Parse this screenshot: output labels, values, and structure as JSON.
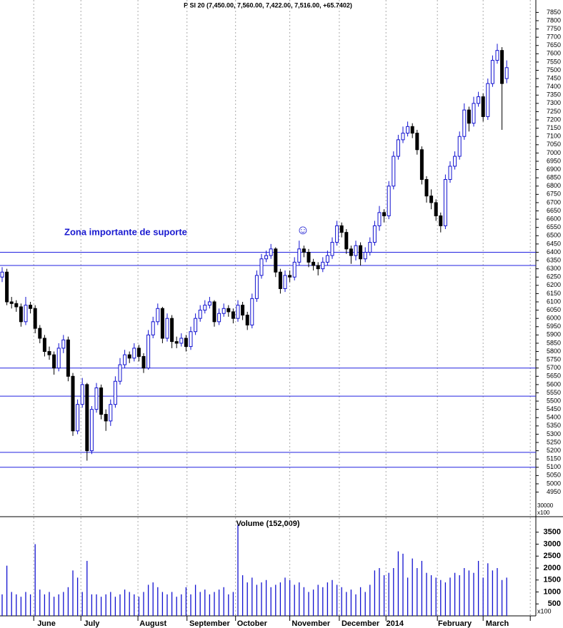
{
  "chart_data": {
    "type": "candlestick",
    "title": "P SI 20 (7,450.00, 7,560.00, 7,422.00, 7,516.00, +65.7402)",
    "annotation": "Zona importante de suporte",
    "symbol": "☺",
    "ylim": [
      4810,
      7925
    ],
    "yticks": [
      4950,
      5000,
      5050,
      5100,
      5150,
      5200,
      5250,
      5300,
      5350,
      5400,
      5450,
      5500,
      5550,
      5600,
      5650,
      5700,
      5750,
      5800,
      5850,
      5900,
      5950,
      6000,
      6050,
      6100,
      6150,
      6200,
      6250,
      6300,
      6350,
      6400,
      6450,
      6500,
      6550,
      6600,
      6650,
      6700,
      6750,
      6800,
      6850,
      6900,
      6950,
      7000,
      7050,
      7100,
      7150,
      7200,
      7250,
      7300,
      7350,
      7400,
      7450,
      7500,
      7550,
      7600,
      7650,
      7700,
      7750,
      7800,
      7850
    ],
    "price_scale_labels": [
      "30000",
      "x100"
    ],
    "support_lines": [
      6400,
      6320,
      5700,
      5530,
      5190,
      5100
    ],
    "support_color": "#2020e0",
    "up_color": "#1010d0",
    "down_color": "#000000",
    "month_labels": [
      {
        "index": 9.4,
        "label": "June"
      },
      {
        "index": 19,
        "label": "July"
      },
      {
        "index": 32,
        "label": "August"
      },
      {
        "index": 44,
        "label": "September"
      },
      {
        "index": 53,
        "label": "October"
      },
      {
        "index": 65.5,
        "label": "November"
      },
      {
        "index": 76,
        "label": "December"
      },
      {
        "index": 83.3,
        "label": "2014"
      },
      {
        "index": 96,
        "label": "February"
      },
      {
        "index": 105,
        "label": "March"
      }
    ],
    "month_starts": [
      6.7,
      16.7,
      28.8,
      39.2,
      49.5,
      61,
      71.5,
      81.4,
      92.3,
      102,
      112
    ],
    "open": [
      6250,
      6280,
      6100,
      6090,
      6070,
      5980,
      6080,
      6060,
      5940,
      5880,
      5800,
      5780,
      5700,
      5820,
      5870,
      5650,
      5320,
      5480,
      5600,
      5200,
      5450,
      5580,
      5420,
      5380,
      5480,
      5620,
      5720,
      5780,
      5760,
      5820,
      5770,
      5700,
      5900,
      5980,
      6060,
      5880,
      6000,
      5860,
      5850,
      5880,
      5830,
      5920,
      6000,
      6050,
      6080,
      6100,
      5980,
      6030,
      6060,
      6040,
      6000,
      6080,
      6020,
      5960,
      6120,
      6260,
      6360,
      6380,
      6420,
      6280,
      6180,
      6260,
      6250,
      6340,
      6420,
      6400,
      6340,
      6320,
      6300,
      6340,
      6380,
      6460,
      6560,
      6520,
      6420,
      6380,
      6440,
      6360,
      6400,
      6460,
      6560,
      6640,
      6620,
      6800,
      6980,
      7080,
      7120,
      7160,
      7120,
      7020,
      6840,
      6740,
      6700,
      6620,
      6560,
      6840,
      6920,
      6980,
      7100,
      7260,
      7180,
      7300,
      7340,
      7220,
      7420,
      7560,
      7620,
      7450
    ],
    "high": [
      6310,
      6300,
      6130,
      6110,
      6090,
      6130,
      6100,
      6080,
      5960,
      5900,
      5830,
      5800,
      5850,
      5900,
      5890,
      5670,
      5510,
      5640,
      5610,
      5470,
      5610,
      5600,
      5450,
      5510,
      5650,
      5760,
      5810,
      5800,
      5850,
      5840,
      5790,
      5930,
      6010,
      6090,
      6070,
      6030,
      6020,
      5890,
      5910,
      5900,
      5950,
      6030,
      6080,
      6110,
      6130,
      6110,
      6060,
      6090,
      6080,
      6060,
      6110,
      6100,
      6040,
      6150,
      6290,
      6390,
      6410,
      6450,
      6430,
      6300,
      6290,
      6290,
      6370,
      6470,
      6440,
      6420,
      6360,
      6340,
      6370,
      6410,
      6490,
      6590,
      6580,
      6540,
      6440,
      6470,
      6460,
      6430,
      6490,
      6590,
      6680,
      6660,
      6830,
      7010,
      7110,
      7160,
      7190,
      7180,
      7140,
      7040,
      6860,
      6780,
      6720,
      6640,
      6870,
      6950,
      7010,
      7130,
      7300,
      7280,
      7340,
      7370,
      7360,
      7450,
      7590,
      7660,
      7640,
      7560
    ],
    "low": [
      6220,
      6080,
      6060,
      6040,
      5950,
      5960,
      6030,
      5910,
      5850,
      5770,
      5750,
      5660,
      5680,
      5790,
      5620,
      5290,
      5300,
      5460,
      5140,
      5180,
      5430,
      5390,
      5320,
      5350,
      5460,
      5600,
      5700,
      5730,
      5740,
      5740,
      5670,
      5690,
      5880,
      5960,
      5850,
      5860,
      5820,
      5820,
      5830,
      5800,
      5810,
      5900,
      5980,
      6030,
      6060,
      5950,
      5960,
      6010,
      6010,
      5970,
      5980,
      5990,
      5930,
      5940,
      6100,
      6240,
      6340,
      6360,
      6250,
      6150,
      6160,
      6220,
      6230,
      6320,
      6370,
      6310,
      6290,
      6260,
      6280,
      6320,
      6360,
      6440,
      6490,
      6390,
      6330,
      6350,
      6320,
      6340,
      6380,
      6440,
      6530,
      6580,
      6600,
      6780,
      6960,
      7060,
      7100,
      7090,
      6990,
      6810,
      6700,
      6660,
      6590,
      6520,
      6540,
      6820,
      6900,
      6960,
      7080,
      7130,
      7160,
      7280,
      7190,
      7200,
      7400,
      7540,
      7140,
      7422
    ],
    "close": [
      6280,
      6100,
      6090,
      6070,
      5980,
      6080,
      6060,
      5940,
      5880,
      5800,
      5780,
      5700,
      5820,
      5870,
      5650,
      5320,
      5480,
      5600,
      5200,
      5450,
      5580,
      5420,
      5380,
      5480,
      5620,
      5720,
      5780,
      5760,
      5820,
      5770,
      5700,
      5900,
      5980,
      6060,
      5880,
      6000,
      5860,
      5850,
      5880,
      5830,
      5920,
      6000,
      6050,
      6080,
      6100,
      5980,
      6030,
      6060,
      6040,
      6000,
      6080,
      6020,
      5960,
      6120,
      6260,
      6360,
      6380,
      6420,
      6280,
      6180,
      6260,
      6250,
      6340,
      6420,
      6400,
      6340,
      6320,
      6300,
      6340,
      6380,
      6460,
      6560,
      6520,
      6420,
      6380,
      6440,
      6360,
      6400,
      6460,
      6560,
      6640,
      6620,
      6800,
      6980,
      7080,
      7120,
      7160,
      7120,
      7020,
      6840,
      6740,
      6700,
      6620,
      6560,
      6840,
      6920,
      6980,
      7100,
      7260,
      7180,
      7300,
      7340,
      7220,
      7420,
      7560,
      7620,
      7420,
      7516
    ],
    "volume_title": "Volume (152,009)",
    "volume_unit": "x100",
    "volume_color": "#1010d0",
    "vylim": [
      0,
      4000
    ],
    "vyticks": [
      500,
      1000,
      1500,
      2000,
      2500,
      3000,
      3500
    ],
    "volume": [
      900,
      2100,
      1000,
      900,
      800,
      1000,
      900,
      3000,
      1100,
      900,
      1000,
      800,
      900,
      1000,
      1200,
      1900,
      1600,
      1000,
      2300,
      900,
      900,
      800,
      900,
      1000,
      800,
      900,
      1100,
      1000,
      900,
      800,
      1000,
      1300,
      1400,
      1200,
      1000,
      900,
      1000,
      800,
      900,
      1200,
      900,
      1300,
      1000,
      1100,
      900,
      1000,
      1100,
      1200,
      900,
      1000,
      3800,
      1700,
      1400,
      1600,
      1300,
      1400,
      1500,
      1200,
      1300,
      1400,
      1600,
      1500,
      1300,
      1400,
      1200,
      1000,
      1100,
      1300,
      1200,
      1400,
      1500,
      1300,
      1200,
      1000,
      1100,
      900,
      1200,
      1000,
      1300,
      1900,
      2000,
      1700,
      1800,
      2000,
      2700,
      2600,
      1600,
      2400,
      2000,
      2300,
      1800,
      1700,
      1600,
      1500,
      1400,
      1600,
      1800,
      1700,
      2000,
      1900,
      1800,
      2300,
      1600,
      2200,
      1900,
      2000,
      1500,
      1600
    ]
  }
}
